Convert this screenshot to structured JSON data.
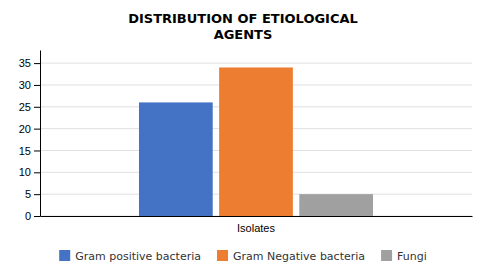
{
  "chart_data": {
    "type": "bar",
    "title": "DISTRIBUTION OF ETIOLOGICAL\nAGENTS",
    "categories": [
      "Isolates"
    ],
    "series": [
      {
        "name": "Gram positive bacteria",
        "color": "#4472C4",
        "values": [
          26
        ]
      },
      {
        "name": "Gram Negative bacteria",
        "color": "#ED7D31",
        "values": [
          34
        ]
      },
      {
        "name": "Fungi",
        "color": "#A0A0A0",
        "values": [
          5
        ]
      }
    ],
    "ylim": [
      0,
      38
    ],
    "yticks": [
      0,
      5,
      10,
      15,
      20,
      25,
      30,
      35
    ],
    "grid": true,
    "legend": "bottom"
  }
}
